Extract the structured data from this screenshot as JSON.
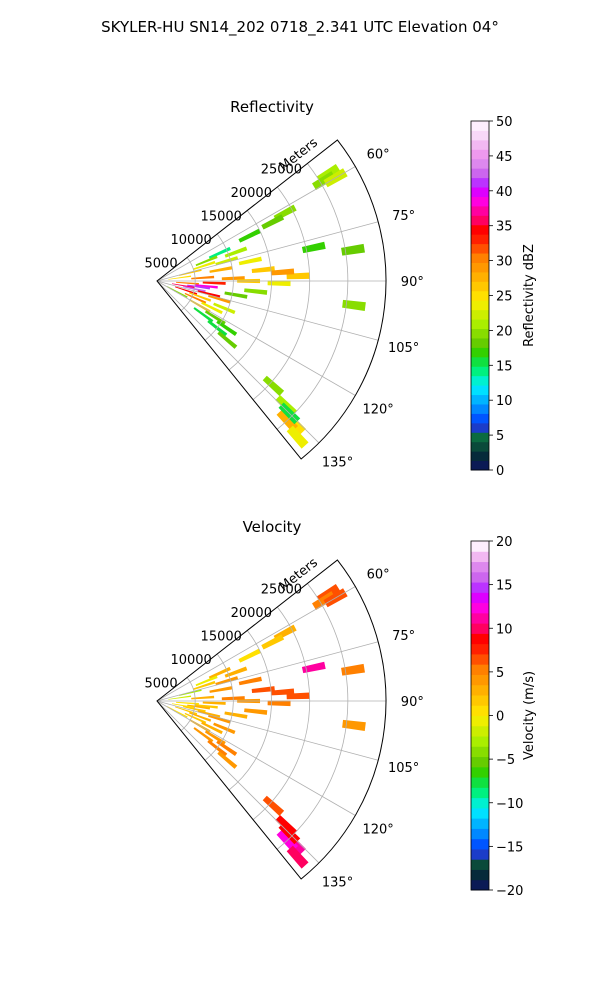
{
  "title": "SKYLER-HU  SN14_202  0718_2.341 UTC Elevation 04°",
  "chart_data": [
    {
      "type": "polar-sector",
      "panel": "reflectivity",
      "title": "Reflectivity",
      "radial_label": "Meters",
      "radial_ticks": [
        5000,
        10000,
        15000,
        20000,
        25000
      ],
      "radial_tick_labels": [
        "5000",
        "10000",
        "15000",
        "20000",
        "25000"
      ],
      "rmax": 30000,
      "theta_range_deg": [
        52,
        141
      ],
      "theta_ticks": [
        60,
        75,
        90,
        105,
        120,
        135
      ],
      "theta_tick_labels": [
        "60°",
        "75°",
        "90°",
        "105°",
        "120°",
        "135°"
      ],
      "grid": true,
      "colorbar": {
        "label": "Reflectivity dBZ",
        "min": 0,
        "max": 50,
        "ticks": [
          0,
          5,
          10,
          15,
          20,
          25,
          30,
          35,
          40,
          45,
          50
        ],
        "tick_labels": [
          "0",
          "5",
          "10",
          "15",
          "20",
          "25",
          "30",
          "35",
          "40",
          "45",
          "50"
        ],
        "colors": [
          "#0b1a55",
          "#062a3a",
          "#0a4a3a",
          "#0b6b40",
          "#1b3cc9",
          "#0055ff",
          "#0088ff",
          "#00b4ff",
          "#00e0ff",
          "#00f0d0",
          "#00f080",
          "#10e040",
          "#33d000",
          "#66cc00",
          "#88dd00",
          "#aaee00",
          "#ccee00",
          "#eeee00",
          "#ffe000",
          "#ffc800",
          "#ffb000",
          "#ff9800",
          "#ff8000",
          "#ff5000",
          "#ff2000",
          "#ff0000",
          "#ff0060",
          "#ff00a0",
          "#ff00e0",
          "#dd00ff",
          "#bb33ff",
          "#cc66ee",
          "#dd88ee",
          "#ee99ee",
          "#f2b8f2",
          "#f8d8f8",
          "#fdeefd"
        ]
      },
      "cells": [
        {
          "az": 58,
          "r": 26500,
          "v": 21
        },
        {
          "az": 59,
          "r": 25500,
          "v": 19
        },
        {
          "az": 60,
          "r": 27000,
          "v": 22
        },
        {
          "az": 62,
          "r": 19000,
          "v": 20
        },
        {
          "az": 63,
          "r": 17000,
          "v": 18
        },
        {
          "az": 64,
          "r": 13500,
          "v": 17
        },
        {
          "az": 66,
          "r": 9000,
          "v": 14
        },
        {
          "az": 68,
          "r": 7000,
          "v": 19
        },
        {
          "az": 70,
          "r": 11000,
          "v": 21
        },
        {
          "az": 72,
          "r": 6500,
          "v": 23
        },
        {
          "az": 74,
          "r": 9500,
          "v": 22
        },
        {
          "az": 76,
          "r": 4500,
          "v": 26
        },
        {
          "az": 78,
          "r": 12500,
          "v": 24
        },
        {
          "az": 80,
          "r": 8500,
          "v": 28
        },
        {
          "az": 82,
          "r": 3000,
          "v": 25
        },
        {
          "az": 84,
          "r": 14000,
          "v": 27
        },
        {
          "az": 86,
          "r": 6000,
          "v": 31
        },
        {
          "az": 88,
          "r": 10000,
          "v": 29
        },
        {
          "az": 90,
          "r": 12000,
          "v": 26
        },
        {
          "az": 92,
          "r": 7500,
          "v": 33
        },
        {
          "az": 94,
          "r": 4000,
          "v": 30
        },
        {
          "az": 96,
          "r": 6500,
          "v": 38
        },
        {
          "az": 98,
          "r": 5500,
          "v": 41
        },
        {
          "az": 100,
          "r": 3500,
          "v": 36
        },
        {
          "az": 102,
          "r": 5000,
          "v": 43
        },
        {
          "az": 104,
          "r": 7000,
          "v": 34
        },
        {
          "az": 106,
          "r": 8500,
          "v": 29
        },
        {
          "az": 108,
          "r": 4000,
          "v": 35
        },
        {
          "az": 110,
          "r": 6000,
          "v": 26
        },
        {
          "az": 112,
          "r": 9500,
          "v": 22
        },
        {
          "az": 114,
          "r": 5500,
          "v": 31
        },
        {
          "az": 116,
          "r": 8000,
          "v": 24
        },
        {
          "az": 118,
          "r": 3000,
          "v": 19
        },
        {
          "az": 120,
          "r": 6500,
          "v": 27
        },
        {
          "az": 122,
          "r": 9000,
          "v": 18
        },
        {
          "az": 124,
          "r": 11000,
          "v": 17
        },
        {
          "az": 126,
          "r": 7500,
          "v": 16
        },
        {
          "az": 128,
          "r": 10000,
          "v": 15
        },
        {
          "az": 130,
          "r": 12000,
          "v": 18
        },
        {
          "az": 132,
          "r": 20500,
          "v": 19
        },
        {
          "az": 134,
          "r": 23500,
          "v": 21
        },
        {
          "az": 136,
          "r": 26000,
          "v": 25
        },
        {
          "az": 137,
          "r": 25000,
          "v": 28
        },
        {
          "az": 138,
          "r": 27500,
          "v": 24
        },
        {
          "az": 135,
          "r": 24500,
          "v": 16
        },
        {
          "az": 88,
          "r": 18500,
          "v": 27
        },
        {
          "az": 91,
          "r": 16000,
          "v": 24
        },
        {
          "az": 86,
          "r": 16500,
          "v": 29
        },
        {
          "az": 96,
          "r": 13000,
          "v": 20
        },
        {
          "az": 100,
          "r": 10500,
          "v": 18
        },
        {
          "az": 78,
          "r": 21000,
          "v": 17
        },
        {
          "az": 81,
          "r": 26000,
          "v": 18
        },
        {
          "az": 97,
          "r": 26000,
          "v": 20
        }
      ]
    },
    {
      "type": "polar-sector",
      "panel": "velocity",
      "title": "Velocity",
      "radial_label": "Meters",
      "radial_ticks": [
        5000,
        10000,
        15000,
        20000,
        25000
      ],
      "radial_tick_labels": [
        "5000",
        "10000",
        "15000",
        "20000",
        "25000"
      ],
      "rmax": 30000,
      "theta_range_deg": [
        52,
        141
      ],
      "theta_ticks": [
        60,
        75,
        90,
        105,
        120,
        135
      ],
      "theta_tick_labels": [
        "60°",
        "75°",
        "90°",
        "105°",
        "120°",
        "135°"
      ],
      "grid": true,
      "colorbar": {
        "label": "Velocity (m/s)",
        "min": -20,
        "max": 20,
        "ticks": [
          -20,
          -15,
          -10,
          -5,
          0,
          5,
          10,
          15,
          20
        ],
        "tick_labels": [
          "−20",
          "−15",
          "−10",
          "−5",
          "0",
          "5",
          "10",
          "15",
          "20"
        ],
        "colors": [
          "#0b1a55",
          "#062a3a",
          "#0a4a3a",
          "#1b3cc9",
          "#0055ff",
          "#0088ff",
          "#00b4ff",
          "#00e0ff",
          "#00f0d0",
          "#00f080",
          "#10e040",
          "#33d000",
          "#66cc00",
          "#88dd00",
          "#aaee00",
          "#ccee00",
          "#eeee00",
          "#ffe000",
          "#ffc800",
          "#ffb000",
          "#ff9800",
          "#ff8000",
          "#ff5000",
          "#ff2000",
          "#ff0000",
          "#ff0060",
          "#ff00a0",
          "#ff00e0",
          "#dd00ff",
          "#bb33ff",
          "#cc66ee",
          "#dd88ee",
          "#f2b8f2",
          "#fdeefd"
        ]
      },
      "cells": [
        {
          "az": 58,
          "r": 26500,
          "v": 6
        },
        {
          "az": 59,
          "r": 25500,
          "v": 5
        },
        {
          "az": 60,
          "r": 27000,
          "v": 7
        },
        {
          "az": 62,
          "r": 19000,
          "v": 3
        },
        {
          "az": 63,
          "r": 17000,
          "v": 2
        },
        {
          "az": 64,
          "r": 13500,
          "v": 1
        },
        {
          "az": 66,
          "r": 9000,
          "v": 3
        },
        {
          "az": 68,
          "r": 7000,
          "v": -1
        },
        {
          "az": 70,
          "r": 11000,
          "v": 3
        },
        {
          "az": 72,
          "r": 6500,
          "v": 2
        },
        {
          "az": 74,
          "r": 9500,
          "v": 4
        },
        {
          "az": 76,
          "r": 4500,
          "v": -3
        },
        {
          "az": 78,
          "r": 12500,
          "v": 5
        },
        {
          "az": 80,
          "r": 8500,
          "v": 4
        },
        {
          "az": 82,
          "r": 3000,
          "v": -2
        },
        {
          "az": 84,
          "r": 14000,
          "v": 6
        },
        {
          "az": 86,
          "r": 6000,
          "v": 3
        },
        {
          "az": 88,
          "r": 10000,
          "v": 5
        },
        {
          "az": 90,
          "r": 12000,
          "v": 4
        },
        {
          "az": 92,
          "r": 7500,
          "v": 3
        },
        {
          "az": 94,
          "r": 4000,
          "v": 1
        },
        {
          "az": 96,
          "r": 6500,
          "v": 2
        },
        {
          "az": 98,
          "r": 5500,
          "v": 3
        },
        {
          "az": 100,
          "r": 3500,
          "v": 1
        },
        {
          "az": 102,
          "r": 5000,
          "v": 2
        },
        {
          "az": 104,
          "r": 7000,
          "v": 3
        },
        {
          "az": 106,
          "r": 8500,
          "v": 4
        },
        {
          "az": 108,
          "r": 4000,
          "v": 2
        },
        {
          "az": 110,
          "r": 6000,
          "v": 3
        },
        {
          "az": 112,
          "r": 9500,
          "v": 4
        },
        {
          "az": 114,
          "r": 5500,
          "v": 2
        },
        {
          "az": 116,
          "r": 8000,
          "v": 3
        },
        {
          "az": 118,
          "r": 3000,
          "v": 1
        },
        {
          "az": 120,
          "r": 6500,
          "v": 3
        },
        {
          "az": 122,
          "r": 9000,
          "v": 4
        },
        {
          "az": 124,
          "r": 11000,
          "v": 5
        },
        {
          "az": 126,
          "r": 7500,
          "v": 4
        },
        {
          "az": 128,
          "r": 10000,
          "v": 5
        },
        {
          "az": 130,
          "r": 12000,
          "v": 4
        },
        {
          "az": 132,
          "r": 20500,
          "v": 7
        },
        {
          "az": 134,
          "r": 23500,
          "v": 9
        },
        {
          "az": 136,
          "r": 26000,
          "v": 11
        },
        {
          "az": 137,
          "r": 25000,
          "v": 12
        },
        {
          "az": 138,
          "r": 27500,
          "v": 10
        },
        {
          "az": 135,
          "r": 24500,
          "v": 9
        },
        {
          "az": 88,
          "r": 18500,
          "v": 6
        },
        {
          "az": 91,
          "r": 16000,
          "v": 5
        },
        {
          "az": 86,
          "r": 16500,
          "v": 7
        },
        {
          "az": 96,
          "r": 13000,
          "v": 4
        },
        {
          "az": 100,
          "r": 10500,
          "v": 3
        },
        {
          "az": 78,
          "r": 21000,
          "v": 11
        },
        {
          "az": 81,
          "r": 26000,
          "v": 5
        },
        {
          "az": 97,
          "r": 26000,
          "v": 4
        }
      ]
    }
  ]
}
